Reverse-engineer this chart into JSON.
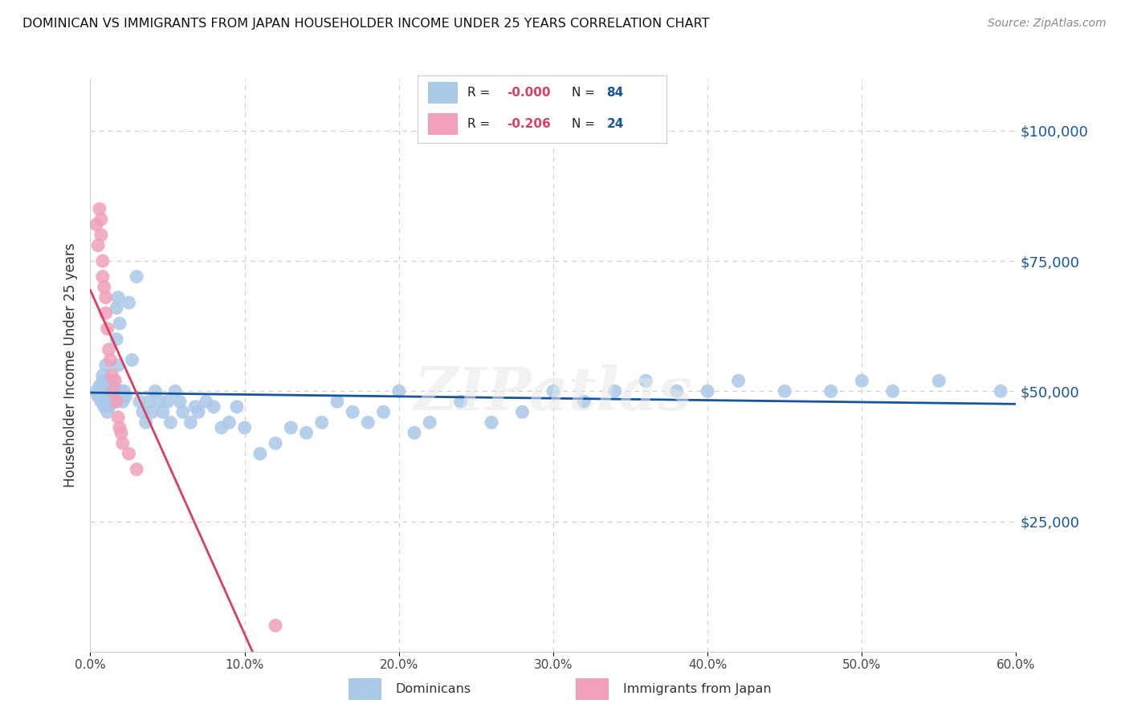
{
  "title": "DOMINICAN VS IMMIGRANTS FROM JAPAN HOUSEHOLDER INCOME UNDER 25 YEARS CORRELATION CHART",
  "source": "Source: ZipAtlas.com",
  "ylabel": "Householder Income Under 25 years",
  "xlim": [
    0.0,
    0.6
  ],
  "ylim": [
    0,
    110000
  ],
  "yticks": [
    0,
    25000,
    50000,
    75000,
    100000
  ],
  "ytick_labels": [
    "",
    "$25,000",
    "$50,000",
    "$75,000",
    "$100,000"
  ],
  "xticks": [
    0.0,
    0.1,
    0.2,
    0.3,
    0.4,
    0.5,
    0.6
  ],
  "xtick_labels": [
    "0.0%",
    "10.0%",
    "20.0%",
    "30.0%",
    "40.0%",
    "50.0%",
    "60.0%"
  ],
  "dominican_color": "#aac8e8",
  "japan_color": "#f0a0b8",
  "trendline_dominican_color": "#1855a0",
  "trendline_japan_color": "#d84060",
  "dashed_color": "#e0b0c0",
  "watermark": "ZIPatlas",
  "background_color": "#ffffff",
  "grid_color": "#cccccc",
  "dominican_x": [
    0.004,
    0.005,
    0.006,
    0.007,
    0.008,
    0.008,
    0.009,
    0.009,
    0.01,
    0.01,
    0.011,
    0.011,
    0.012,
    0.012,
    0.013,
    0.013,
    0.014,
    0.014,
    0.015,
    0.015,
    0.016,
    0.016,
    0.017,
    0.017,
    0.018,
    0.018,
    0.019,
    0.02,
    0.021,
    0.022,
    0.023,
    0.025,
    0.027,
    0.03,
    0.032,
    0.034,
    0.036,
    0.038,
    0.04,
    0.042,
    0.045,
    0.047,
    0.05,
    0.052,
    0.055,
    0.058,
    0.06,
    0.065,
    0.068,
    0.07,
    0.075,
    0.08,
    0.085,
    0.09,
    0.095,
    0.1,
    0.11,
    0.12,
    0.13,
    0.14,
    0.15,
    0.16,
    0.17,
    0.18,
    0.19,
    0.2,
    0.21,
    0.22,
    0.24,
    0.26,
    0.28,
    0.3,
    0.32,
    0.34,
    0.36,
    0.38,
    0.4,
    0.42,
    0.45,
    0.48,
    0.5,
    0.52,
    0.55,
    0.59
  ],
  "dominican_y": [
    50000,
    49000,
    51000,
    48000,
    52000,
    53000,
    47000,
    50000,
    55000,
    48000,
    46000,
    49000,
    51000,
    47000,
    50000,
    52000,
    48000,
    50000,
    49000,
    51000,
    48000,
    50000,
    66000,
    60000,
    55000,
    68000,
    63000,
    50000,
    48000,
    50000,
    49000,
    67000,
    56000,
    72000,
    48000,
    46000,
    44000,
    48000,
    46000,
    50000,
    48000,
    46000,
    48000,
    44000,
    50000,
    48000,
    46000,
    44000,
    47000,
    46000,
    48000,
    47000,
    43000,
    44000,
    47000,
    43000,
    38000,
    40000,
    43000,
    42000,
    44000,
    48000,
    46000,
    44000,
    46000,
    50000,
    42000,
    44000,
    48000,
    44000,
    46000,
    50000,
    48000,
    50000,
    52000,
    50000,
    50000,
    52000,
    50000,
    50000,
    52000,
    50000,
    52000,
    50000
  ],
  "japan_x": [
    0.004,
    0.005,
    0.006,
    0.007,
    0.007,
    0.008,
    0.008,
    0.009,
    0.01,
    0.01,
    0.011,
    0.012,
    0.013,
    0.014,
    0.015,
    0.016,
    0.017,
    0.018,
    0.019,
    0.02,
    0.021,
    0.025,
    0.03,
    0.12
  ],
  "japan_y": [
    82000,
    78000,
    85000,
    83000,
    80000,
    75000,
    72000,
    70000,
    68000,
    65000,
    62000,
    58000,
    56000,
    53000,
    50000,
    52000,
    48000,
    45000,
    43000,
    42000,
    40000,
    38000,
    35000,
    5000
  ]
}
